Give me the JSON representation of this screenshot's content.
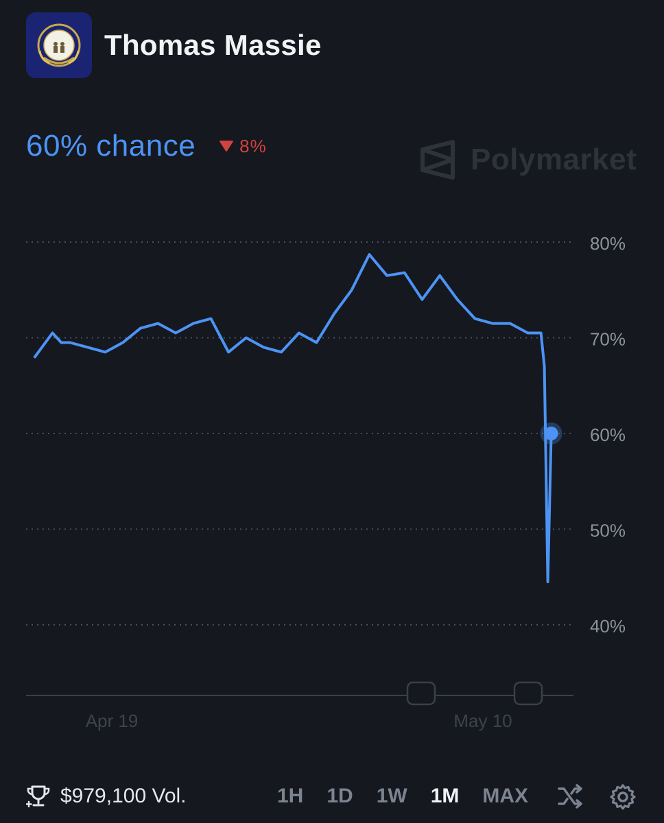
{
  "market": {
    "title": "Thomas Massie",
    "flag_icon": "kentucky-seal-icon"
  },
  "summary": {
    "chance_label": "60% chance",
    "change_label": "8%",
    "change_direction": "down",
    "change_color": "#d0433e",
    "accent_color": "#4c93f5"
  },
  "watermark": {
    "text": "Polymarket"
  },
  "footer": {
    "volume_label": "$979,100 Vol.",
    "ranges": [
      "1H",
      "1D",
      "1W",
      "1M",
      "MAX"
    ],
    "active_range": "1M",
    "shuffle_icon": "shuffle-icon",
    "settings_icon": "gear-icon"
  },
  "chart_data": {
    "type": "line",
    "series": [
      {
        "color": "#4c93f5",
        "x": [
          "2025-04-14",
          "2025-04-15",
          "2025-04-15",
          "2025-04-16",
          "2025-04-17",
          "2025-04-18",
          "2025-04-19",
          "2025-04-20",
          "2025-04-21",
          "2025-04-22",
          "2025-04-22",
          "2025-04-23",
          "2025-04-24",
          "2025-04-25",
          "2025-04-26",
          "2025-04-27",
          "2025-04-28",
          "2025-04-29",
          "2025-04-30",
          "2025-05-01",
          "2025-05-02",
          "2025-05-03",
          "2025-05-04",
          "2025-05-05",
          "2025-05-06",
          "2025-05-07",
          "2025-05-08",
          "2025-05-09",
          "2025-05-10",
          "2025-05-11",
          "2025-05-12",
          "2025-05-13",
          "2025-05-13",
          "2025-05-13",
          "2025-05-13"
        ],
        "y": [
          68,
          70.5,
          69.5,
          69.5,
          69,
          68.5,
          69.5,
          71,
          71.5,
          70.5,
          71,
          71.5,
          72,
          68.5,
          70,
          69,
          68.5,
          70.5,
          69.5,
          72.5,
          75,
          78.7,
          76.5,
          76.8,
          74,
          76.5,
          74,
          72,
          71.5,
          71.5,
          70.5,
          70.5,
          67,
          44.5,
          60
        ]
      }
    ],
    "y_ticks": [
      "80%",
      "70%",
      "60%",
      "50%",
      "40%"
    ],
    "x_ticks": [
      "Apr 19",
      "May 10"
    ],
    "ylim": [
      33,
      85
    ],
    "grid": true,
    "current_value": 60
  }
}
